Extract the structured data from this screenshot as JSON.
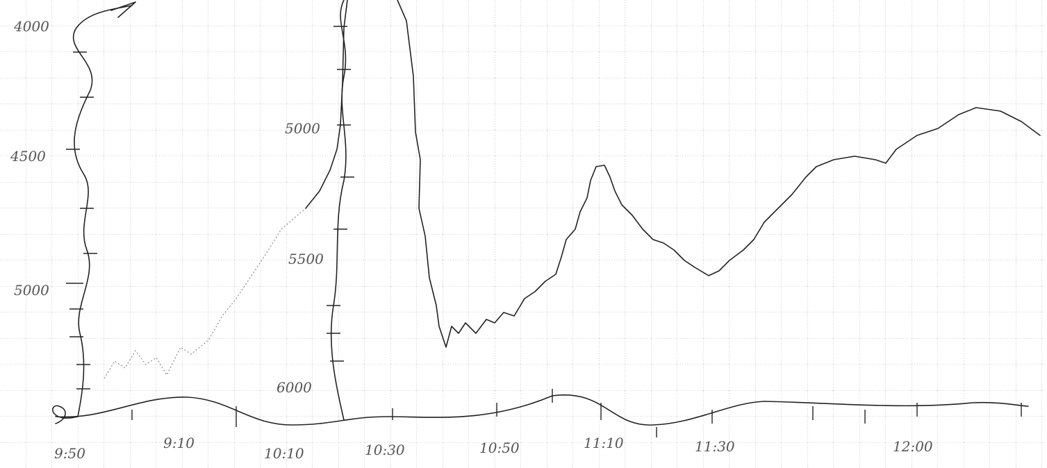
{
  "left_axis": {
    "labels": [
      "4000",
      "4500",
      "5000"
    ]
  },
  "right_axis": {
    "labels": [
      "5000",
      "5500",
      "6000"
    ]
  },
  "time_axis": {
    "labels": [
      "9:50",
      "9:10",
      "10:10",
      "10:30",
      "10:50",
      "11:10",
      "11:30",
      "12:00"
    ]
  }
}
